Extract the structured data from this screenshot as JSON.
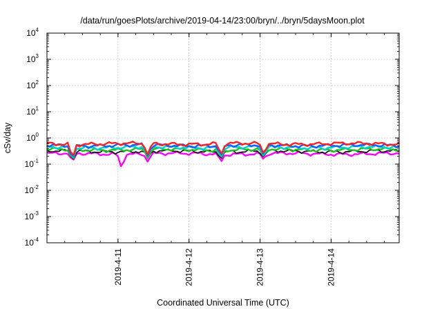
{
  "chart_data": {
    "type": "line",
    "title": "/data/run/goesPlots/archive/2019-04-14/23:00/bryn/../bryn/5daysMoon.plot",
    "xlabel": "Coordinated Universal Time (UTC)",
    "ylabel": "cSv/day",
    "yscale": "log",
    "ylim": [
      0.0001,
      10000
    ],
    "xlim": [
      "2019-04-10 00:00",
      "2019-04-14 23:00"
    ],
    "y_ticks": [
      {
        "base": "10",
        "exp": "4"
      },
      {
        "base": "10",
        "exp": "3"
      },
      {
        "base": "10",
        "exp": "2"
      },
      {
        "base": "10",
        "exp": "1"
      },
      {
        "base": "10",
        "exp": "0"
      },
      {
        "base": "10",
        "exp": "-1"
      },
      {
        "base": "10",
        "exp": "-2"
      },
      {
        "base": "10",
        "exp": "-3"
      },
      {
        "base": "10",
        "exp": "-4"
      }
    ],
    "x_ticks": [
      "2019-4-11",
      "2019-4-12",
      "2019-4-13",
      "2019-4-14"
    ],
    "grid": true,
    "legend": "none",
    "series": [
      {
        "color": "#ff2020",
        "base": 0.6,
        "dips": [
          {
            "day": 0.36,
            "value": 0.16
          },
          {
            "day": 1.42,
            "value": 0.22
          },
          {
            "day": 2.45,
            "value": 0.22
          },
          {
            "day": 3.05,
            "value": 0.24
          }
        ]
      },
      {
        "color": "#1060ff",
        "base": 0.52,
        "dips": [
          {
            "day": 0.36,
            "value": 0.15
          },
          {
            "day": 1.42,
            "value": 0.2
          },
          {
            "day": 2.45,
            "value": 0.2
          },
          {
            "day": 3.05,
            "value": 0.22
          }
        ]
      },
      {
        "color": "#00d0d0",
        "base": 0.44,
        "dips": [
          {
            "day": 0.36,
            "value": 0.14
          },
          {
            "day": 1.42,
            "value": 0.19
          },
          {
            "day": 2.45,
            "value": 0.18
          },
          {
            "day": 3.05,
            "value": 0.2
          }
        ]
      },
      {
        "color": "#20c020",
        "base": 0.36,
        "dips": [
          {
            "day": 0.36,
            "value": 0.13
          },
          {
            "day": 1.42,
            "value": 0.17
          },
          {
            "day": 2.45,
            "value": 0.17
          },
          {
            "day": 3.05,
            "value": 0.19
          }
        ]
      },
      {
        "color": "#000000",
        "base": 0.31,
        "dips": [
          {
            "day": 0.36,
            "value": 0.13
          },
          {
            "day": 1.42,
            "value": 0.16
          },
          {
            "day": 2.45,
            "value": 0.16
          },
          {
            "day": 3.05,
            "value": 0.18
          }
        ]
      },
      {
        "color": "#ff00ff",
        "base": 0.25,
        "dips": [
          {
            "day": 0.36,
            "value": 0.12
          },
          {
            "day": 1.05,
            "value": 0.07
          },
          {
            "day": 1.42,
            "value": 0.12
          },
          {
            "day": 2.45,
            "value": 0.12
          },
          {
            "day": 3.05,
            "value": 0.15
          }
        ]
      }
    ]
  }
}
